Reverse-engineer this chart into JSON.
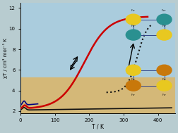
{
  "title": "",
  "xlabel": "T / K",
  "ylabel": "χT / cm³ mol⁻¹ K",
  "xlim": [
    0,
    450
  ],
  "ylim": [
    1.8,
    12.5
  ],
  "yticks": [
    2,
    4,
    6,
    8,
    10,
    12
  ],
  "xticks": [
    0,
    100,
    200,
    300,
    400
  ],
  "background_color": "#c8d8e0",
  "red_curve_color": "#cc0000",
  "black_curve_color": "#111111",
  "blue_curve_color": "#000080",
  "dotted_curve_color": "#111111",
  "arrow_color": "#111111"
}
